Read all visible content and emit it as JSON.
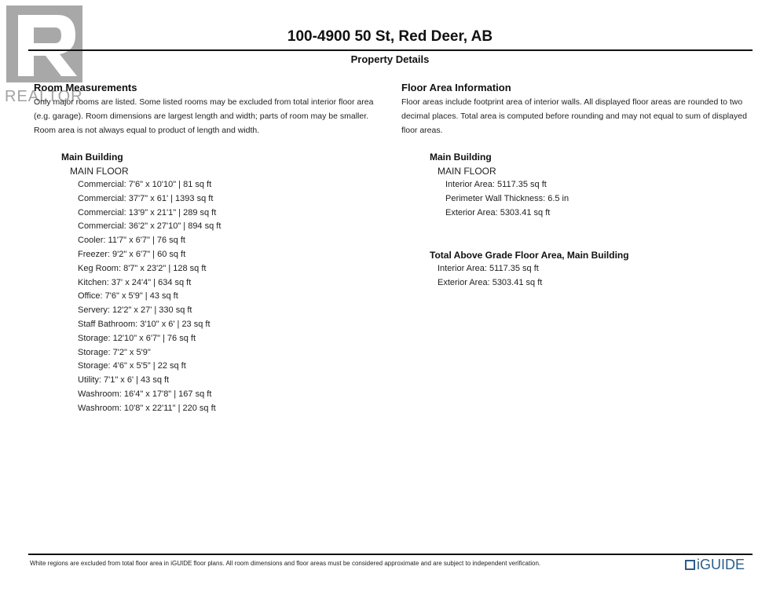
{
  "header": {
    "title": "100-4900 50 St, Red Deer, AB",
    "subtitle": "Property Details"
  },
  "logo": {
    "text": "REALTOR"
  },
  "room_measurements": {
    "heading": "Room Measurements",
    "note": "Only major rooms are listed. Some listed rooms may be excluded from total interior floor area (e.g. garage). Room dimensions are largest length and width; parts of room may be smaller. Room area is not always equal to product of length and width.",
    "building": "Main Building",
    "floor": "MAIN FLOOR",
    "rooms": [
      "Commercial: 7'6\" x 10'10\" | 81 sq ft",
      "Commercial: 37'7\" x 61' | 1393 sq ft",
      "Commercial: 13'9\" x 21'1\" | 289 sq ft",
      "Commercial: 36'2\" x 27'10\" | 894 sq ft",
      "Cooler: 11'7\" x 6'7\" | 76 sq ft",
      "Freezer: 9'2\" x 6'7\" | 60 sq ft",
      "Keg Room: 8'7\" x 23'2\" | 128 sq ft",
      "Kitchen: 37' x 24'4\" | 634 sq ft",
      "Office: 7'6\" x 5'9\" | 43 sq ft",
      "Servery: 12'2\" x 27' | 330 sq ft",
      "Staff Bathroom: 3'10\" x 6' | 23 sq ft",
      "Storage: 12'10\" x 6'7\" | 76 sq ft",
      "Storage: 7'2\" x 5'9\"",
      "Storage: 4'6\" x 5'5\" | 22 sq ft",
      "Utility: 7'1\" x 6' | 43 sq ft",
      "Washroom: 16'4\" x 17'8\" | 167 sq ft",
      "Washroom: 10'8\" x 22'11\" | 220 sq ft"
    ]
  },
  "floor_area": {
    "heading": "Floor Area Information",
    "note": "Floor areas include footprint area of interior walls. All displayed floor areas are rounded to two decimal places. Total area is computed before rounding and may not equal to sum of displayed floor areas.",
    "building": "Main Building",
    "floor": "MAIN FLOOR",
    "items": [
      "Interior Area: 5117.35 sq ft",
      "Perimeter Wall Thickness: 6.5 in",
      "Exterior Area: 5303.41 sq ft"
    ],
    "total_heading": "Total Above Grade Floor Area, Main Building",
    "total_items": [
      "Interior Area: 5117.35 sq ft",
      "Exterior Area: 5303.41 sq ft"
    ]
  },
  "footer": {
    "disclaimer": "White regions are excluded from total floor area in iGUIDE floor plans. All room dimensions and floor areas must be considered approximate and are subject to independent verification.",
    "brand": "iGUIDE",
    "brand_color": "#2a5d8a"
  }
}
